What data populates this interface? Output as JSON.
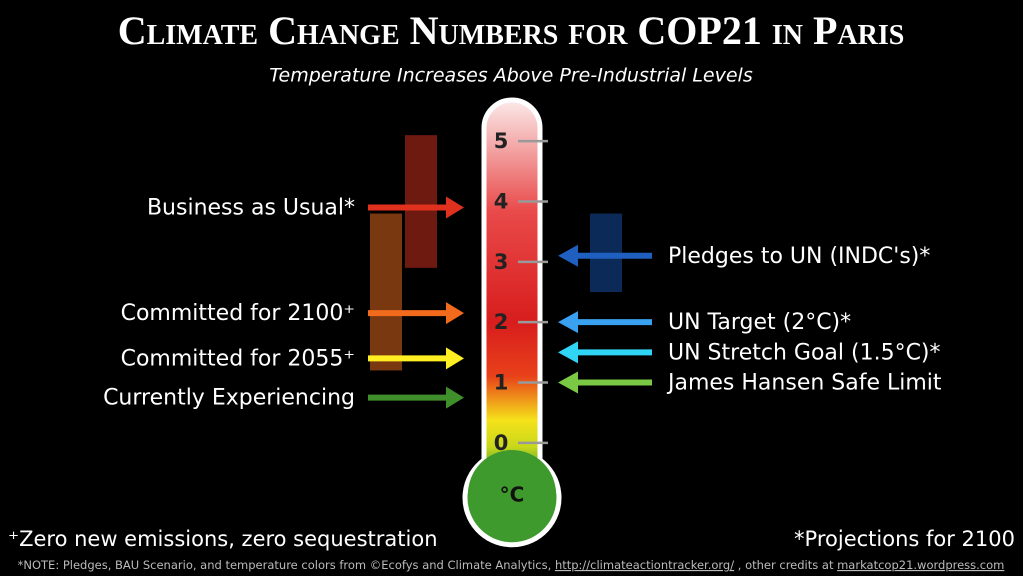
{
  "chart_data": {
    "type": "thermometer",
    "title": "Climate Change Numbers for COP21 in Paris",
    "subtitle": "Temperature Increases Above Pre-Industrial Levels",
    "unit": "°C",
    "ylim": [
      -0.5,
      5.5
    ],
    "yticks": [
      0,
      1,
      2,
      3,
      4,
      5
    ],
    "series": [
      {
        "name": "Business as Usual*",
        "side": "left",
        "color": "#e0301e",
        "value": 3.9,
        "range": [
          2.9,
          5.1
        ],
        "range_color": "#6e1a10"
      },
      {
        "name": "Committed for 2100⁺",
        "side": "left",
        "color": "#f26a1b",
        "value": 2.15,
        "range": [
          1.2,
          3.8
        ],
        "range_color": "#7a3810"
      },
      {
        "name": "Committed for 2055⁺",
        "side": "left",
        "color": "#ffee22",
        "value": 1.4
      },
      {
        "name": "Currently Experiencing",
        "side": "left",
        "color": "#3f8f2a",
        "value": 0.75
      },
      {
        "name": "Pledges to UN (INDC's)*",
        "side": "right",
        "color": "#1f5fc0",
        "value": 3.1,
        "range": [
          2.5,
          3.8
        ],
        "range_color": "#0c2a58"
      },
      {
        "name": "UN Target (2°C)*",
        "side": "right",
        "color": "#3aa0f0",
        "value": 2
      },
      {
        "name": "UN Stretch Goal (1.5°C)*",
        "side": "right",
        "color": "#30d4f4",
        "value": 1.5
      },
      {
        "name": "James Hansen Safe Limit",
        "side": "right",
        "color": "#7ac843",
        "value": 1
      }
    ],
    "footnote_left": "⁺Zero new emissions, zero sequestration",
    "footnote_right": "*Projections for 2100",
    "note": [
      "*NOTE: Pledges, BAU Scenario, and temperature colors from ©Ecofys and Climate Analytics, ",
      "http://climateactiontracker.org/",
      " , other credits at ",
      "markatcop21.wordpress.com"
    ]
  }
}
